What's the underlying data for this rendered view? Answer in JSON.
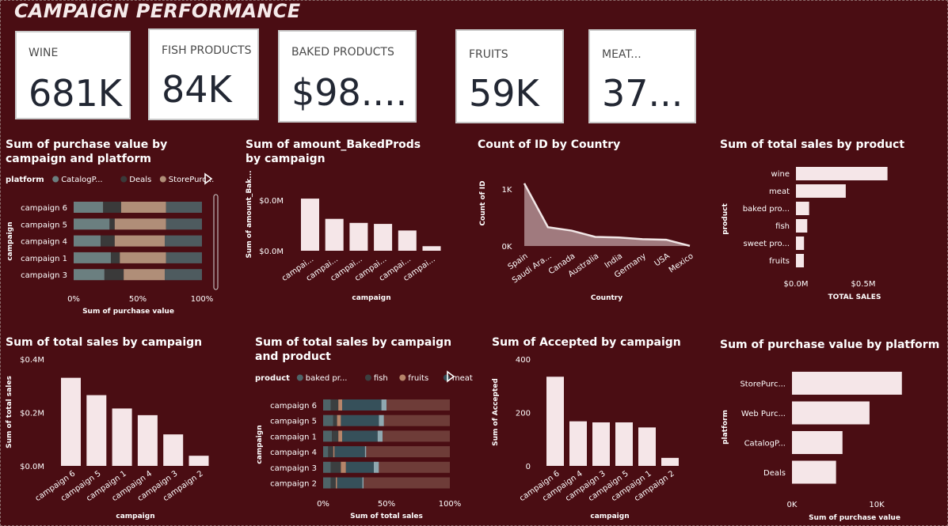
{
  "header": {
    "title": "CAMPAIGN PERFORMANCE"
  },
  "cards": [
    {
      "label": "WINE",
      "value": "681K"
    },
    {
      "label": "FISH PRODUCTS",
      "value": "84K"
    },
    {
      "label": "BAKED PRODUCTS",
      "value": "$98...."
    },
    {
      "label": "FRUITS",
      "value": "59K"
    },
    {
      "label": "MEAT...",
      "value": "37..."
    }
  ],
  "colors": {
    "background": "#4a0d13",
    "bar": "#f5e6e8",
    "catalog": "#6b7f80",
    "deals": "#3a3a3a",
    "store": "#b08e78",
    "web": "#4e5b5f",
    "baked": "#4e6468",
    "fish": "#3b3f40",
    "fruits": "#b6856a",
    "meat": "#36505a",
    "meat_highlight": "#8fa8b0",
    "remainder": "#6e3c38"
  },
  "chart_data": [
    {
      "id": "c1",
      "type": "bar",
      "orientation": "horizontal-stacked-100",
      "title": "Sum of purchase value by campaign and platform",
      "legend_title": "platform",
      "legend": [
        "CatalogP...",
        "Deals",
        "StorePurc..."
      ],
      "categories": [
        "campaign 6",
        "campaign 5",
        "campaign 4",
        "campaign 1",
        "campaign 3"
      ],
      "series": [
        {
          "name": "CatalogP...",
          "values": [
            23,
            28,
            21,
            29,
            24
          ]
        },
        {
          "name": "Deals",
          "values": [
            14,
            4,
            11,
            7,
            15
          ]
        },
        {
          "name": "StorePurc...",
          "values": [
            35,
            40,
            39,
            36,
            32
          ]
        },
        {
          "values": [
            28,
            28,
            29,
            28,
            29
          ]
        }
      ],
      "xlabel": "Sum of purchase value",
      "ylabel": "campaign",
      "xticks": [
        "0%",
        "50%",
        "100%"
      ]
    },
    {
      "id": "c2",
      "type": "bar",
      "title": "Sum of amount_BakedProds by campaign",
      "categories": [
        "campai...",
        "campai...",
        "campai...",
        "campai...",
        "campai...",
        "campai..."
      ],
      "values": [
        1.03,
        0.63,
        0.55,
        0.53,
        0.4,
        0.09
      ],
      "ylim": [
        0,
        1.25
      ],
      "yticks": [
        "$0.0M",
        "$0.0M"
      ],
      "xlabel": "campaign",
      "ylabel": "Sum of amount_Bak..."
    },
    {
      "id": "c3",
      "type": "area",
      "title": "Count of ID by Country",
      "categories": [
        "Spain",
        "Saudi Ara...",
        "Canada",
        "Australia",
        "India",
        "Germany",
        "USA",
        "Mexico"
      ],
      "values": [
        1100,
        330,
        270,
        160,
        150,
        120,
        110,
        3
      ],
      "ylim": [
        0,
        1000
      ],
      "yticks": [
        "0K",
        "1K"
      ],
      "xlabel": "Country",
      "ylabel": "Count of ID"
    },
    {
      "id": "c4",
      "type": "bar",
      "orientation": "horizontal",
      "title": "Sum of total sales by product",
      "categories": [
        "wine",
        "meat",
        "baked pro...",
        "fish",
        "sweet pro...",
        "fruits"
      ],
      "values": [
        0.68,
        0.37,
        0.098,
        0.084,
        0.06,
        0.059
      ],
      "xticks": [
        "$0.0M",
        "$0.5M"
      ],
      "xlabel": "TOTAL SALES",
      "ylabel": "product"
    },
    {
      "id": "c5",
      "type": "bar",
      "title": "Sum of total sales by campaign",
      "categories": [
        "campaign 6",
        "campaign 5",
        "campaign 1",
        "campaign 4",
        "campaign 3",
        "campaign 2"
      ],
      "values": [
        0.33,
        0.265,
        0.215,
        0.19,
        0.118,
        0.038
      ],
      "ylim": [
        0,
        0.4
      ],
      "yticks": [
        "$0.0M",
        "$0.2M",
        "$0.4M"
      ],
      "xlabel": "campaign",
      "ylabel": "Sum of total sales"
    },
    {
      "id": "c6",
      "type": "bar",
      "orientation": "horizontal-stacked-100",
      "title": "Sum of total sales by campaign and product",
      "legend_title": "product",
      "legend": [
        "baked pr...",
        "fish",
        "fruits",
        "meat"
      ],
      "categories": [
        "campaign 6",
        "campaign 5",
        "campaign 1",
        "campaign 4",
        "campaign 3",
        "campaign 2"
      ],
      "series": [
        {
          "name": "baked pr...",
          "values": [
            6,
            8,
            7,
            4,
            6,
            6
          ]
        },
        {
          "name": "fish",
          "values": [
            6,
            3,
            5,
            4,
            8,
            4
          ]
        },
        {
          "name": "fruits",
          "values": [
            3,
            3,
            3,
            1,
            4,
            1
          ]
        },
        {
          "name": "meat",
          "values": [
            31,
            30,
            28,
            24,
            22,
            20
          ]
        },
        {
          "values": [
            4,
            4,
            4,
            1,
            4,
            1
          ]
        },
        {
          "values": [
            50,
            52,
            53,
            66,
            56,
            68
          ]
        }
      ],
      "xlabel": "Sum of total sales",
      "ylabel": "campaign",
      "xticks": [
        "0%",
        "50%",
        "100%"
      ]
    },
    {
      "id": "c7",
      "type": "bar",
      "title": "Sum of Accepted by campaign",
      "categories": [
        "campaign 6",
        "campaign 4",
        "campaign 3",
        "campaign 5",
        "campaign 1",
        "campaign 2"
      ],
      "values": [
        334,
        167,
        163,
        163,
        144,
        30
      ],
      "ylim": [
        0,
        400
      ],
      "yticks": [
        "0",
        "200",
        "400"
      ],
      "xlabel": "campaign",
      "ylabel": "Sum of Accepted"
    },
    {
      "id": "c8",
      "type": "bar",
      "orientation": "horizontal",
      "title": "Sum of purchase value by platform",
      "categories": [
        "StorePurc...",
        "Web Purc...",
        "CatalogP...",
        "Deals"
      ],
      "values": [
        12970,
        9150,
        5960,
        5200
      ],
      "xticks": [
        "0K",
        "10K"
      ],
      "xlabel": "Sum of purchase value",
      "ylabel": "platform"
    }
  ]
}
